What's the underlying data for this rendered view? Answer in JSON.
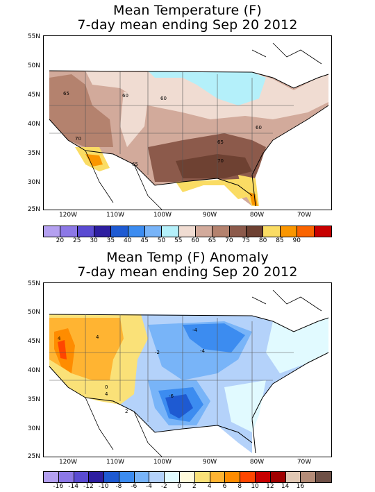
{
  "panels": [
    {
      "title_line1": "Mean Temperature (F)",
      "title_line2": "7-day mean ending Sep 20 2012",
      "lat_labels": [
        "55N",
        "50N",
        "45N",
        "40N",
        "35N",
        "30N",
        "25N"
      ],
      "lon_labels": [
        "120W",
        "110W",
        "100W",
        "90W",
        "80W",
        "70W"
      ],
      "contour_labels": [
        "65",
        "60",
        "60",
        "70",
        "65",
        "60",
        "70",
        "65"
      ],
      "colorbar_labels": [
        "20",
        "25",
        "30",
        "35",
        "40",
        "45",
        "50",
        "55",
        "60",
        "65",
        "70",
        "75",
        "80",
        "85",
        "90"
      ],
      "colorbar_colors": [
        "#b4a0f0",
        "#8c78e6",
        "#5a4bd2",
        "#2d1ea0",
        "#1e5ad2",
        "#3c8cf0",
        "#78b4f8",
        "#b4f0fa",
        "#f0dcd2",
        "#d2aa9b",
        "#b4826e",
        "#8c5a4b",
        "#6e4132",
        "#fadc64",
        "#fa9600",
        "#fa6400",
        "#c80000"
      ]
    },
    {
      "title_line1": "Mean Temp (F) Anomaly",
      "title_line2": "7-day mean ending Sep 20 2012",
      "lat_labels": [
        "55N",
        "50N",
        "45N",
        "40N",
        "35N",
        "30N",
        "25N"
      ],
      "lon_labels": [
        "120W",
        "110W",
        "100W",
        "90W",
        "80W",
        "70W"
      ],
      "contour_labels": [
        "4",
        "4",
        "-2",
        "-4",
        "-4",
        "0",
        "4",
        "2",
        "-6"
      ],
      "colorbar_labels": [
        "-16",
        "-14",
        "-12",
        "-10",
        "-8",
        "-6",
        "-4",
        "-2",
        "0",
        "2",
        "4",
        "6",
        "8",
        "10",
        "12",
        "14",
        "16"
      ],
      "colorbar_colors": [
        "#b4a0f0",
        "#8c78e6",
        "#5a4bd2",
        "#2d1ea0",
        "#1e5ad2",
        "#3c8cf0",
        "#78b4f8",
        "#b4d2fa",
        "#e1faff",
        "#fffadc",
        "#fae178",
        "#ffb432",
        "#ff8c00",
        "#ff4600",
        "#c80000",
        "#a00000",
        "#e1c8b4",
        "#b48c78",
        "#6e5046"
      ]
    }
  ]
}
